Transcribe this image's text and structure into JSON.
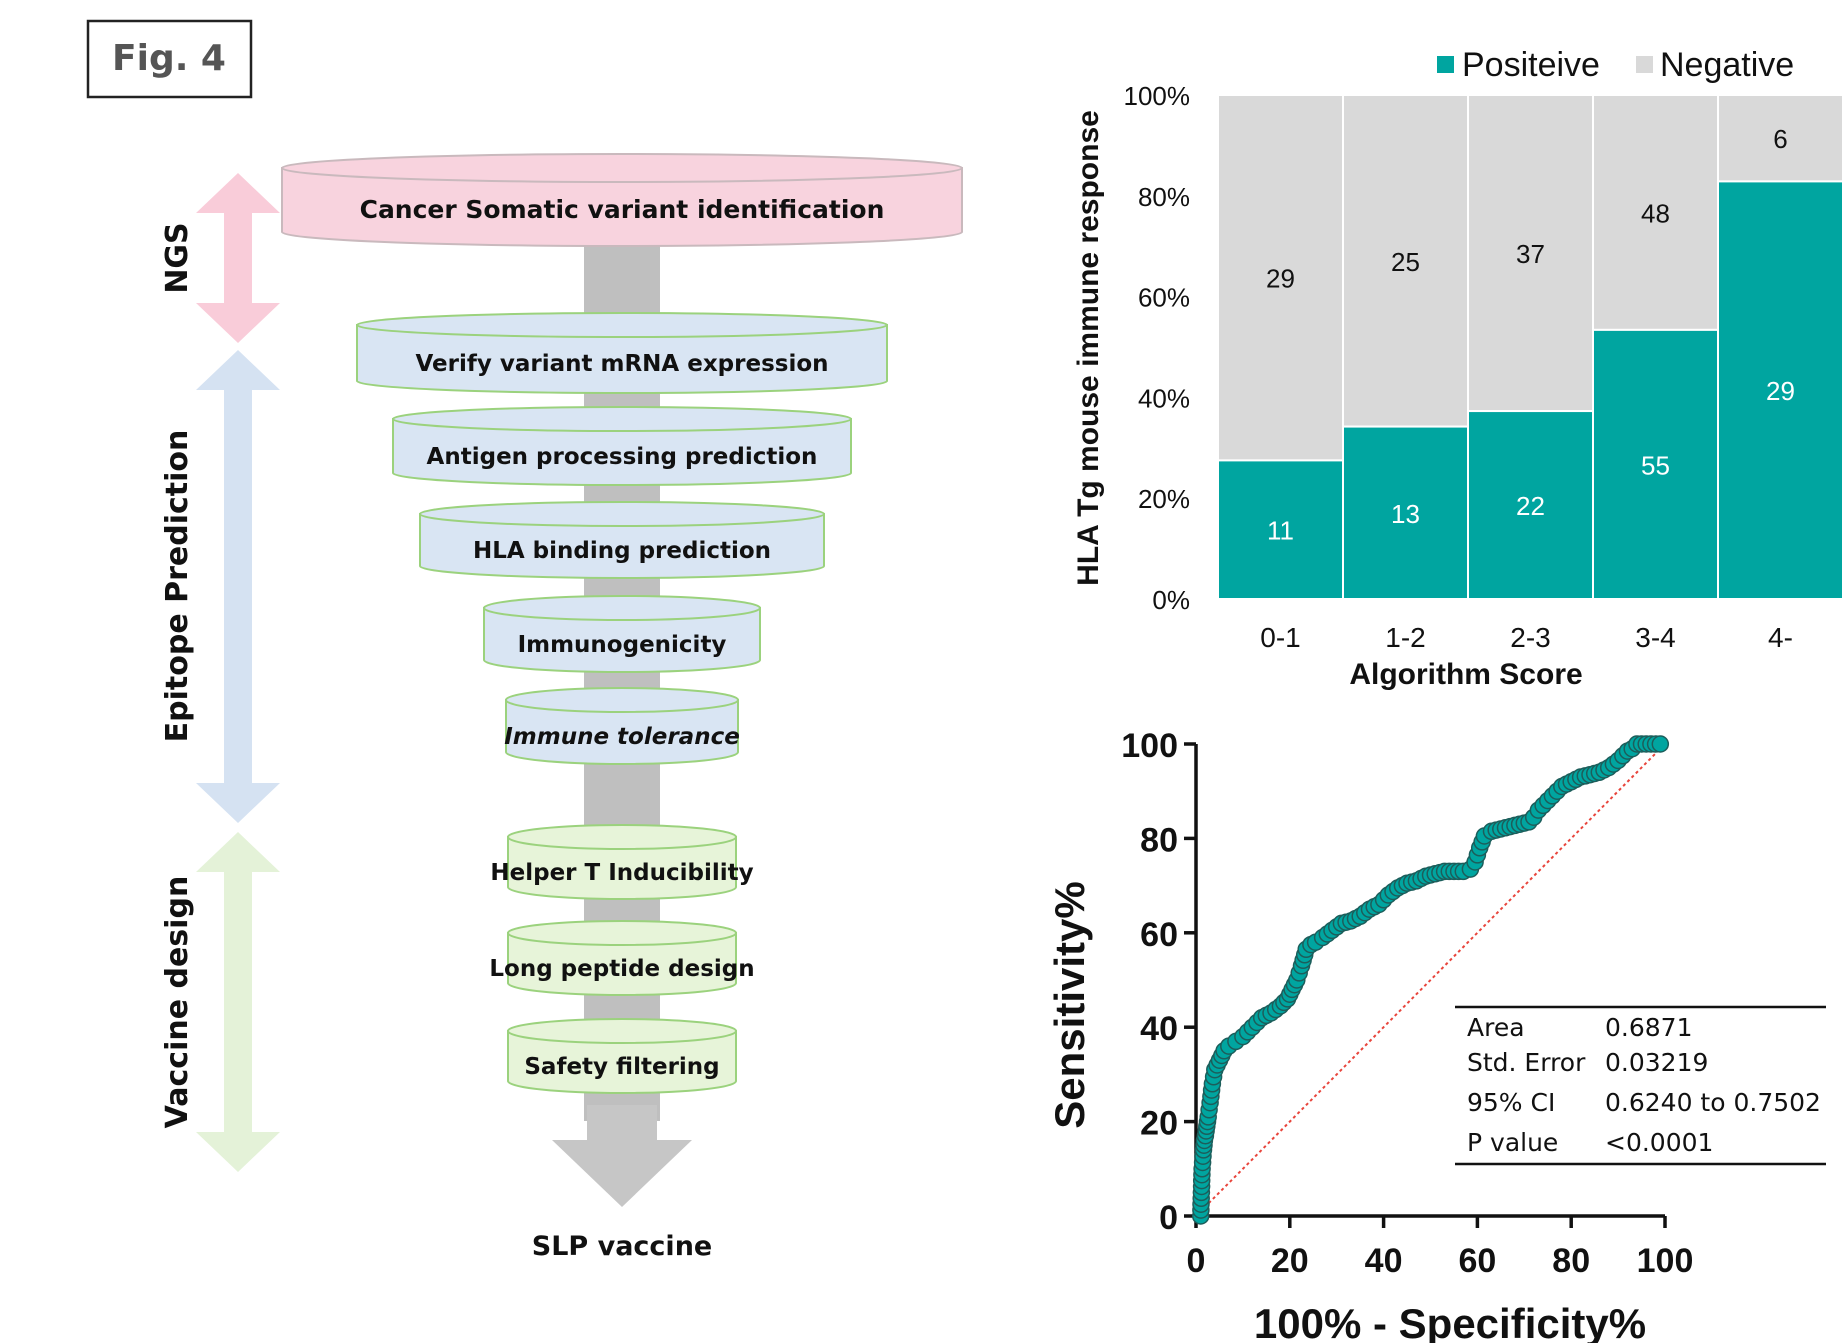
{
  "figure": {
    "label": "Fig. 4"
  },
  "pipeline": {
    "phases": [
      {
        "name": "NGS",
        "color": "#f9ccd9"
      },
      {
        "name": "Epitope Prediction",
        "color": "#d5e2f2"
      },
      {
        "name": "Vaccine design",
        "color": "#e4f2d8"
      }
    ],
    "steps": [
      {
        "label": "Cancer Somatic variant identification",
        "phase": 0,
        "italic": false
      },
      {
        "label": "Verify variant mRNA expression",
        "phase": 1,
        "italic": false
      },
      {
        "label": "Antigen processing prediction",
        "phase": 1,
        "italic": false
      },
      {
        "label": "HLA binding prediction",
        "phase": 1,
        "italic": false
      },
      {
        "label": "Immunogenicity",
        "phase": 1,
        "italic": false
      },
      {
        "label": "Immune tolerance",
        "phase": 1,
        "italic": true
      },
      {
        "label": "Helper T Inducibility",
        "phase": 2,
        "italic": false
      },
      {
        "label": "Long peptide design",
        "phase": 2,
        "italic": false
      },
      {
        "label": "Safety filtering",
        "phase": 2,
        "italic": false
      }
    ],
    "output_label": "SLP vaccine",
    "colors": {
      "ngs_fill": "#f8d3de",
      "ngs_stroke": "#c9b9bd",
      "epitope_fill": "#d9e5f3",
      "vaccine_fill": "#e7f4d9",
      "disk_stroke": "#9bd27d",
      "connector": "#bfbfbf"
    }
  },
  "chart_data": [
    {
      "type": "bar",
      "stacked": "percent",
      "categories": [
        "0-1",
        "1-2",
        "2-3",
        "3-4",
        "4-"
      ],
      "series": [
        {
          "name": "Positeive",
          "values": [
            11,
            13,
            22,
            55,
            29
          ],
          "color": "#00a5a0"
        },
        {
          "name": "Negative",
          "values": [
            29,
            25,
            37,
            48,
            6
          ],
          "color": "#d9d9d9"
        }
      ],
      "xlabel": "Algorithm Score",
      "ylabel": "HLA Tg mouse immune response",
      "ylim": [
        0,
        100
      ],
      "yticks": [
        "0%",
        "20%",
        "40%",
        "60%",
        "80%",
        "100%"
      ],
      "legend": "top-right"
    },
    {
      "type": "line",
      "xlabel": "100% - Specificity%",
      "ylabel": "Sensitivity%",
      "xlim": [
        0,
        100
      ],
      "ylim": [
        0,
        100
      ],
      "xticks": [
        "0",
        "20",
        "40",
        "60",
        "80",
        "100"
      ],
      "yticks": [
        "0",
        "20",
        "40",
        "60",
        "80",
        "100"
      ],
      "series": [
        {
          "name": "ROC",
          "color": "#00a5a0",
          "x": [
            1,
            1.3,
            1.6,
            1.8,
            2,
            2.3,
            2.6,
            3,
            3.5,
            4,
            5,
            6,
            7,
            8.5,
            10,
            12,
            14,
            16,
            18,
            19.5,
            20.5,
            21.5,
            22.5,
            23.5,
            24.5,
            25.5,
            27,
            29,
            31,
            33,
            35,
            37,
            39,
            41,
            43,
            45,
            47,
            49,
            51,
            53,
            55,
            57,
            58.5,
            59.5,
            60.5,
            61.5,
            63,
            65,
            67,
            69,
            71,
            72,
            73,
            74,
            75,
            76,
            78,
            80,
            82,
            84,
            86,
            88,
            90,
            91,
            92,
            93,
            94,
            95,
            96,
            97,
            98,
            99
          ],
          "y": [
            0,
            10,
            14,
            16,
            17,
            19,
            21,
            24,
            28,
            31,
            33,
            35,
            36,
            37,
            38,
            40,
            42,
            43,
            44.5,
            46,
            48,
            50,
            53,
            56.5,
            57.5,
            58,
            59,
            60.5,
            62,
            62.5,
            63.5,
            65,
            66,
            68,
            69.5,
            70.5,
            71,
            72,
            72.5,
            73,
            73,
            73,
            73.5,
            75,
            78,
            80.5,
            81.5,
            82,
            82.5,
            83,
            83.5,
            84.5,
            86,
            87,
            88,
            89,
            91,
            92,
            93,
            93.5,
            94,
            95,
            96.5,
            97.5,
            98.5,
            99,
            100,
            100,
            100,
            100,
            100,
            100
          ]
        },
        {
          "name": "Reference",
          "color": "#e8453c",
          "x": [
            0,
            100
          ],
          "y": [
            0,
            100
          ]
        }
      ]
    }
  ],
  "roc_stats": [
    {
      "label": "Area",
      "value": "0.6871"
    },
    {
      "label": "Std. Error",
      "value": "0.03219"
    },
    {
      "label": "95% CI",
      "value": "0.6240 to 0.7502"
    },
    {
      "label": "P value",
      "value": "<0.0001"
    }
  ]
}
